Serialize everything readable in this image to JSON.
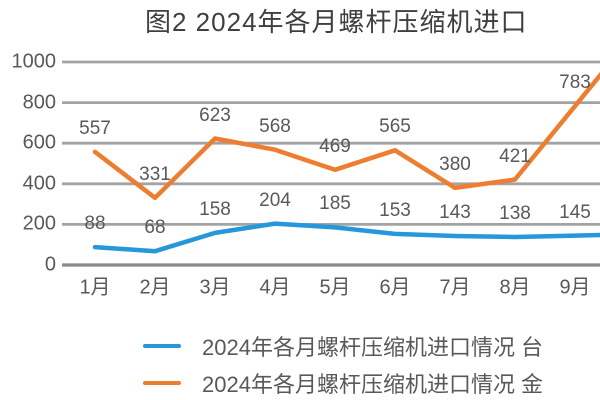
{
  "chart_data": {
    "type": "line",
    "title": "图2 2024年各月螺杆压缩机进口",
    "categories": [
      "1月",
      "2月",
      "3月",
      "4月",
      "5月",
      "6月",
      "7月",
      "8月",
      "9月"
    ],
    "y_ticks": [
      0,
      200,
      400,
      600,
      800,
      1000
    ],
    "ylim": [
      0,
      1000
    ],
    "grid": true,
    "legend_position": "bottom",
    "series": [
      {
        "id": "units",
        "name": "2024年各月螺杆压缩机进口情况  台",
        "color": "#2797DB",
        "values": [
          88,
          68,
          158,
          204,
          185,
          153,
          143,
          138,
          145
        ]
      },
      {
        "id": "amount",
        "name": "2024年各月螺杆压缩机进口情况  金",
        "color": "#ED7D31",
        "values": [
          557,
          331,
          623,
          568,
          469,
          565,
          380,
          421,
          783
        ]
      }
    ]
  },
  "colors": {
    "label_text": "#595959",
    "grid": "#A3A3A3",
    "axis": "#8A8A8A",
    "title": "#3F3F3F"
  }
}
